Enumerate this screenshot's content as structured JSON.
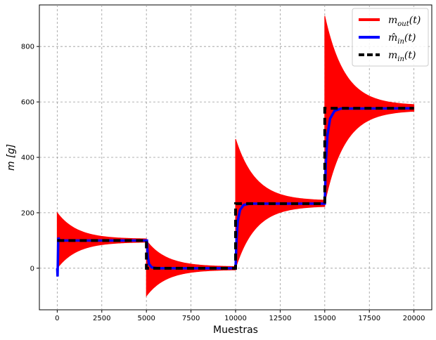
{
  "chart_data": {
    "type": "line",
    "xlabel": "Muestras",
    "ylabel": "m [g]",
    "xlim": [
      -1000,
      21000
    ],
    "ylim": [
      -150,
      950
    ],
    "xticks": [
      0,
      2500,
      5000,
      7500,
      10000,
      12500,
      15000,
      17500,
      20000
    ],
    "yticks": [
      0,
      200,
      400,
      600,
      800
    ],
    "grid": true,
    "legend_position": "top-right",
    "series": [
      {
        "name": "m_out(t)",
        "legend_main": "m",
        "legend_sub": "out",
        "legend_suffix": "(t)",
        "color": "#ff0000",
        "style": "envelope",
        "segments": [
          {
            "x_start": 0,
            "x_end": 5000,
            "y_start": 0,
            "y_end": 100,
            "upper_peak": 200,
            "lower_peak": 0,
            "upper_end": 105,
            "lower_end": 95
          },
          {
            "x_start": 5000,
            "x_end": 10000,
            "y_start": 100,
            "y_end": 0,
            "upper_peak": 100,
            "lower_peak": -100,
            "upper_end": 5,
            "lower_end": -5
          },
          {
            "x_start": 10000,
            "x_end": 15000,
            "y_start": 0,
            "y_end": 233,
            "upper_peak": 466,
            "lower_peak": 0,
            "upper_end": 243,
            "lower_end": 225
          },
          {
            "x_start": 15000,
            "x_end": 20000,
            "y_start": 233,
            "y_end": 577,
            "upper_peak": 910,
            "lower_peak": 235,
            "upper_end": 587,
            "lower_end": 570
          }
        ]
      },
      {
        "name": "m̂_in(t)",
        "legend_main": "m̂",
        "legend_sub": "in",
        "legend_suffix": "(t)",
        "color": "#0000ff",
        "style": "line",
        "points": [
          [
            0,
            0
          ],
          [
            20,
            -30
          ],
          [
            60,
            110
          ],
          [
            140,
            100
          ],
          [
            5000,
            100
          ],
          [
            5030,
            100
          ],
          [
            5080,
            40
          ],
          [
            5150,
            15
          ],
          [
            5300,
            3
          ],
          [
            5600,
            0
          ],
          [
            10000,
            0
          ],
          [
            10050,
            100
          ],
          [
            10120,
            170
          ],
          [
            10250,
            210
          ],
          [
            10450,
            228
          ],
          [
            10800,
            233
          ],
          [
            15000,
            233
          ],
          [
            15060,
            380
          ],
          [
            15150,
            480
          ],
          [
            15300,
            540
          ],
          [
            15550,
            568
          ],
          [
            15900,
            576
          ],
          [
            20000,
            577
          ]
        ]
      },
      {
        "name": "m_in(t)",
        "legend_main": "m",
        "legend_sub": "in",
        "legend_suffix": "(t)",
        "color": "#000000",
        "style": "dashed",
        "points": [
          [
            0,
            100
          ],
          [
            5000,
            100
          ],
          [
            5000,
            0
          ],
          [
            10000,
            0
          ],
          [
            10000,
            233
          ],
          [
            15000,
            233
          ],
          [
            15000,
            577
          ],
          [
            20000,
            577
          ]
        ]
      }
    ]
  }
}
